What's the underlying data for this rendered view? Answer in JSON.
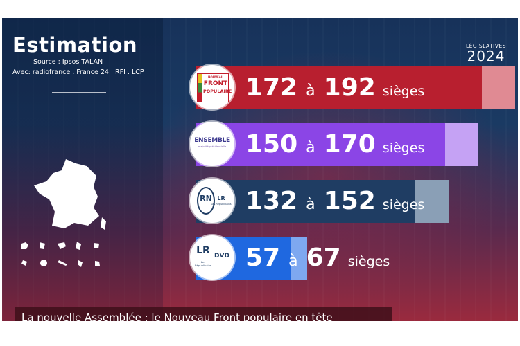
{
  "header": {
    "title": "Estimation",
    "source": "Source : Ipsos TALAN",
    "partners": "Avec: radiofrance . France 24 . RFI . LCP"
  },
  "brand": {
    "line1": "LÉGISLATIVES",
    "line2": "2024"
  },
  "chart_data": {
    "type": "bar",
    "categories": [
      "NOUVEAU FRONT POPULAIRE",
      "ENSEMBLE",
      "RN",
      "LR DVD"
    ],
    "series": [
      {
        "name": "min",
        "values": [
          172,
          150,
          132,
          57
        ]
      },
      {
        "name": "max",
        "values": [
          192,
          170,
          152,
          67
        ]
      }
    ],
    "connector": "à",
    "unit": "sièges",
    "colors": [
      "#b81f2f",
      "#8b45e6",
      "#1f3d63",
      "#1f68e0"
    ],
    "range_colors": [
      "#e08a93",
      "#c5a2f4",
      "#8a9fb6",
      "#7ea8f0"
    ]
  },
  "logos": {
    "nfp_top": "NOUVEAU",
    "nfp_mid": "FRONT",
    "nfp_bot": "POPULAIRE",
    "ensemble": "ENSEMBLE",
    "ensemble_sub": "majorité présidentielle",
    "rn": "RN",
    "lr_small": "LR",
    "lr_sub": "Les Républicains",
    "lr_big": "LR",
    "dvd": "DVD"
  },
  "ticker": "La nouvelle Assemblée :  le Nouveau Front populaire en tête"
}
